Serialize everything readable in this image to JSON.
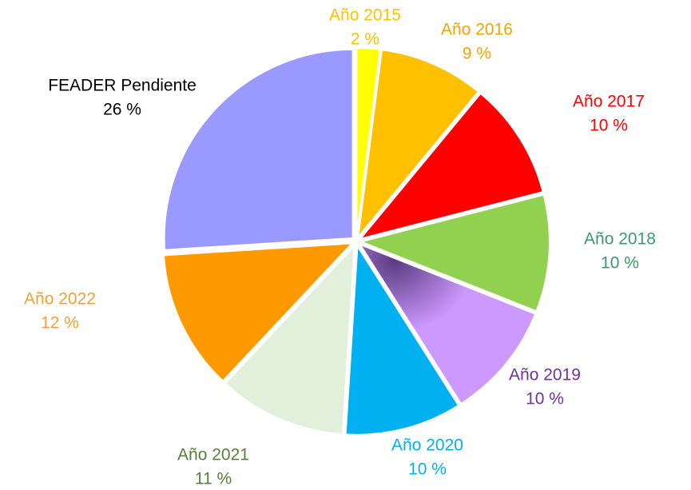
{
  "chart_data": {
    "type": "pie",
    "categories": [
      "Año 2015",
      "Año 2016",
      "Año 2017",
      "Año 2018",
      "Año 2019",
      "Año 2020",
      "Año 2021",
      "Año 2022",
      "FEADER Pendiente"
    ],
    "values": [
      2,
      9,
      10,
      10,
      10,
      10,
      11,
      12,
      26
    ],
    "value_labels": [
      "2 %",
      "9 %",
      "10 %",
      "10 %",
      "10 %",
      "10 %",
      "11 %",
      "12 %",
      "26 %"
    ],
    "colors": [
      "#ffff00",
      "#ffc000",
      "#ff0000",
      "#92d050",
      "#cc99ff",
      "#00b0f0",
      "#e2efda",
      "#ff9900",
      "#9999ff"
    ],
    "label_colors": [
      "#ffc000",
      "#f5a300",
      "#ff0000",
      "#3a9a6a",
      "#7030a0",
      "#00b0f0",
      "#548235",
      "#f5a030",
      "#000000"
    ]
  }
}
